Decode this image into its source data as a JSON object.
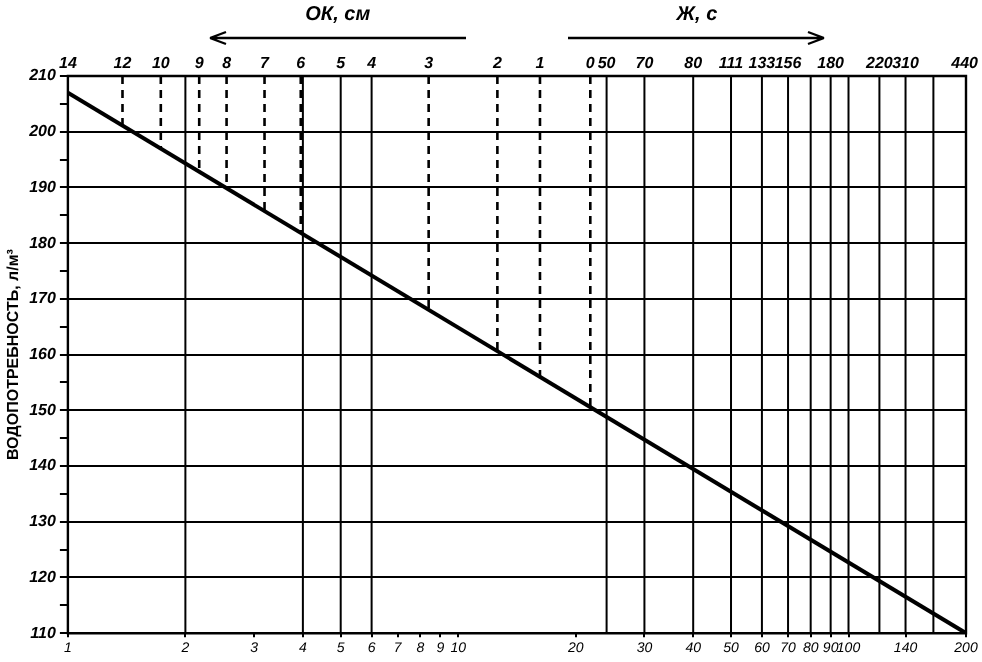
{
  "chart_data": {
    "type": "line",
    "ylabel": "ВОДОПОТРЕБНОСТЬ, л/м³",
    "log": "x",
    "marker": "none",
    "legend": false,
    "grid": "y",
    "annotations": [
      "ОК, см",
      "Ж, с",
      "14",
      "440",
      {
        "text": "12",
        "x": 1.38,
        "y": 210
      },
      {
        "text": "10",
        "x": 1.73,
        "y": 210
      },
      {
        "text": "9",
        "x": 2.17,
        "y": 210
      },
      {
        "text": "8",
        "x": 2.55,
        "y": 210
      },
      {
        "text": "7",
        "x": 3.19,
        "y": 210
      },
      {
        "text": "6",
        "x": 3.95,
        "y": 210
      },
      {
        "text": "5",
        "x": 5,
        "y": 210
      },
      {
        "text": "4",
        "x": 6,
        "y": 210
      },
      {
        "text": "3",
        "x": 8.4,
        "y": 210
      },
      {
        "text": "2",
        "x": 12.6,
        "y": 210
      },
      {
        "text": "1",
        "x": 16.2,
        "y": 210
      },
      {
        "text": "0",
        "x": 21.8,
        "y": 210
      },
      {
        "text": "50",
        "x": 24,
        "y": 210
      },
      {
        "text": "70",
        "x": 30,
        "y": 210
      },
      {
        "text": "80",
        "x": 40,
        "y": 210
      },
      {
        "text": "111",
        "x": 50,
        "y": 210
      },
      {
        "text": "133",
        "x": 60,
        "y": 210
      },
      {
        "text": "156",
        "x": 70,
        "y": 210
      },
      {
        "text": "180",
        "x": 90,
        "y": 210
      },
      {
        "text": "220",
        "x": 120,
        "y": 210
      },
      {
        "text": "310",
        "x": 140,
        "y": 210
      }
    ],
    "xlim": [
      1,
      200
    ],
    "xticks": [
      1,
      2,
      3,
      4,
      5,
      6,
      7,
      8,
      9,
      10,
      20,
      30,
      40,
      50,
      60,
      70,
      80,
      90,
      100,
      140,
      200
    ],
    "ylim": [
      110,
      210
    ],
    "yticks": [
      110,
      {
        "value": 115,
        "label": null
      },
      120,
      {
        "value": 125,
        "label": null
      },
      130,
      {
        "value": 135,
        "label": null
      },
      140,
      {
        "value": 145,
        "label": null
      },
      150,
      {
        "value": 155,
        "label": null
      },
      160,
      {
        "value": 165,
        "label": null
      },
      170,
      {
        "value": 175,
        "label": null
      },
      180,
      {
        "value": 185,
        "label": null
      },
      190,
      {
        "value": 195,
        "label": null
      },
      200,
      {
        "value": 205,
        "label": null
      },
      210
    ],
    "ref_lines": [
      {
        "axis": "x",
        "value": 1.38,
        "line_style": "dashed"
      },
      {
        "axis": "x",
        "value": 1.73,
        "line_style": "dashed"
      },
      {
        "axis": "x",
        "value": 2.17,
        "line_style": "dashed"
      },
      {
        "axis": "x",
        "value": 2.55,
        "line_style": "dashed"
      },
      {
        "axis": "x",
        "value": 3.19,
        "line_style": "dashed"
      },
      {
        "axis": "x",
        "value": 3.95,
        "line_style": "dashed"
      },
      {
        "axis": "x",
        "value": 8.4,
        "line_style": "dashed"
      },
      {
        "axis": "x",
        "value": 12.6,
        "line_style": "dashed"
      },
      {
        "axis": "x",
        "value": 16.2,
        "line_style": "dashed"
      },
      {
        "axis": "x",
        "value": 21.8,
        "line_style": "dashed"
      },
      {
        "axis": "x",
        "value": 2
      },
      {
        "axis": "x",
        "value": 4
      },
      {
        "axis": "x",
        "value": 5
      },
      {
        "axis": "x",
        "value": 6
      },
      {
        "axis": "x",
        "value": 24
      },
      {
        "axis": "x",
        "value": 30
      },
      {
        "axis": "x",
        "value": 40
      },
      {
        "axis": "x",
        "value": 50
      },
      {
        "axis": "x",
        "value": 60
      },
      {
        "axis": "x",
        "value": 70
      },
      {
        "axis": "x",
        "value": 80
      },
      {
        "axis": "x",
        "value": 90
      },
      {
        "axis": "x",
        "value": 100
      },
      {
        "axis": "x",
        "value": 120
      },
      {
        "axis": "x",
        "value": 140
      },
      {
        "axis": "x",
        "value": 165
      }
    ],
    "series": [
      {
        "color": "#000000",
        "x": [
          1,
          200
        ],
        "values": [
          207,
          110
        ]
      }
    ]
  }
}
